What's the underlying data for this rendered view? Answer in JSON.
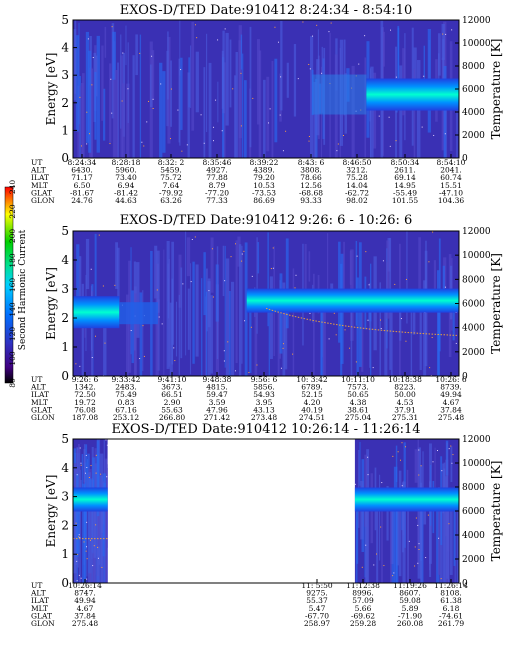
{
  "colorbar": {
    "label": "Second Harmonic Current",
    "ticks": [
      "80",
      "100",
      "120",
      "140",
      "160",
      "180",
      "200",
      "220",
      "240"
    ]
  },
  "chart_data": [
    {
      "type": "heatmap",
      "title": "EXOS-D/TED   Date:910412   8:24:34 - 8:54:10",
      "ylabel": "Energy [eV]",
      "y2label": "Temperature [K]",
      "ylim": [
        0,
        5
      ],
      "y2lim": [
        0,
        12000
      ],
      "yticks": [
        "0",
        "1",
        "2",
        "3",
        "4",
        "5"
      ],
      "y2ticks": [
        "0",
        "2000",
        "4000",
        "6000",
        "8000",
        "10000",
        "12000"
      ],
      "row_labels": [
        "UT",
        "ALT",
        "ILAT",
        "MLT",
        "GLAT",
        "GLON"
      ],
      "columns": [
        [
          "8:24:34",
          "6430.",
          "71.17",
          "6.50",
          "-81.67",
          "24.76"
        ],
        [
          "8:28:18",
          "5960.",
          "73.40",
          "6.94",
          "-81.42",
          "44.63"
        ],
        [
          "8:32: 2",
          "5459.",
          "75.72",
          "7.64",
          "-79.92",
          "63.26"
        ],
        [
          "8:35:46",
          "4927.",
          "77.88",
          "8.79",
          "-77.20",
          "77.33"
        ],
        [
          "8:39:22",
          "4389.",
          "79.20",
          "10.53",
          "-73.53",
          "86.69"
        ],
        [
          "8:43: 6",
          "3808.",
          "78.66",
          "12.56",
          "-68.68",
          "93.33"
        ],
        [
          "8:46:50",
          "3212.",
          "75.28",
          "14.04",
          "-62.72",
          "98.02"
        ],
        [
          "8:50:34",
          "2611.",
          "69.14",
          "14.95",
          "-55.49",
          "101.55"
        ],
        [
          "8:54:10",
          "2041.",
          "60.74",
          "15.51",
          "-47.10",
          "104.36"
        ]
      ],
      "data_extent": [
        0,
        1
      ],
      "band_energy_ev": 2.3
    },
    {
      "type": "heatmap",
      "title": "EXOS-D/TED   Date:910412   9:26: 6 - 10:26: 6",
      "ylabel": "Energy [eV]",
      "y2label": "Temperature [K]",
      "ylim": [
        0,
        5
      ],
      "y2lim": [
        0,
        12000
      ],
      "yticks": [
        "0",
        "1",
        "2",
        "3",
        "4",
        "5"
      ],
      "y2ticks": [
        "0",
        "2000",
        "4000",
        "6000",
        "8000",
        "10000",
        "12000"
      ],
      "row_labels": [
        "UT",
        "ALT",
        "ILAT",
        "MLT",
        "GLAT",
        "GLON"
      ],
      "columns": [
        [
          "9:26: 6",
          "1342.",
          "72.50",
          "19.72",
          "76.08",
          "187.08"
        ],
        [
          "9:33:42",
          "2483.",
          "75.49",
          "0.83",
          "67.16",
          "253.12"
        ],
        [
          "9:41:10",
          "3673.",
          "66.51",
          "2.90",
          "55.63",
          "266.80"
        ],
        [
          "9:48:38",
          "4815.",
          "59.47",
          "3.59",
          "47.96",
          "271.42"
        ],
        [
          "9:56: 6",
          "5856.",
          "54.93",
          "3.95",
          "43.13",
          "273.48"
        ],
        [
          "10: 3:42",
          "6789.",
          "52.15",
          "4.20",
          "40.19",
          "274.51"
        ],
        [
          "10:11:10",
          "7573.",
          "50.65",
          "4.38",
          "38.61",
          "275.04"
        ],
        [
          "10:18:38",
          "8223.",
          "50.00",
          "4.53",
          "37.91",
          "275.31"
        ],
        [
          "10:26: 6",
          "8739.",
          "49.94",
          "4.67",
          "37.84",
          "275.48"
        ]
      ],
      "data_extent": [
        0,
        1
      ],
      "band_energy_ev": 2.6
    },
    {
      "type": "heatmap",
      "title": "EXOS-D/TED   Date:910412   10:26:14 - 11:26:14",
      "ylabel": "Energy [eV]",
      "y2label": "Temperature [K]",
      "ylim": [
        0,
        5
      ],
      "y2lim": [
        0,
        12000
      ],
      "yticks": [
        "0",
        "1",
        "2",
        "3",
        "4",
        "5"
      ],
      "y2ticks": [
        "0",
        "2000",
        "4000",
        "6000",
        "8000",
        "10000",
        "12000"
      ],
      "row_labels": [
        "UT",
        "ALT",
        "ILAT",
        "MLT",
        "GLAT",
        "GLON"
      ],
      "columns": [
        [
          "10:26:14",
          "8747.",
          "49.94",
          "4.67",
          "37.84",
          "275.48"
        ],
        [
          "11: 5:50",
          "9275.",
          "55.37",
          "5.47",
          "-67.70",
          "258.97"
        ],
        [
          "11:12:38",
          "8996.",
          "57.09",
          "5.66",
          "-69.62",
          "259.28"
        ],
        [
          "11:19:26",
          "8607.",
          "59.08",
          "5.89",
          "-71.90",
          "260.08"
        ],
        [
          "11:26:14",
          "8108.",
          "61.38",
          "6.18",
          "-74.61",
          "261.79"
        ]
      ],
      "data_extent": [
        [
          0,
          0.09
        ],
        [
          0.73,
          1
        ]
      ],
      "band_energy_ev": 2.9
    }
  ]
}
